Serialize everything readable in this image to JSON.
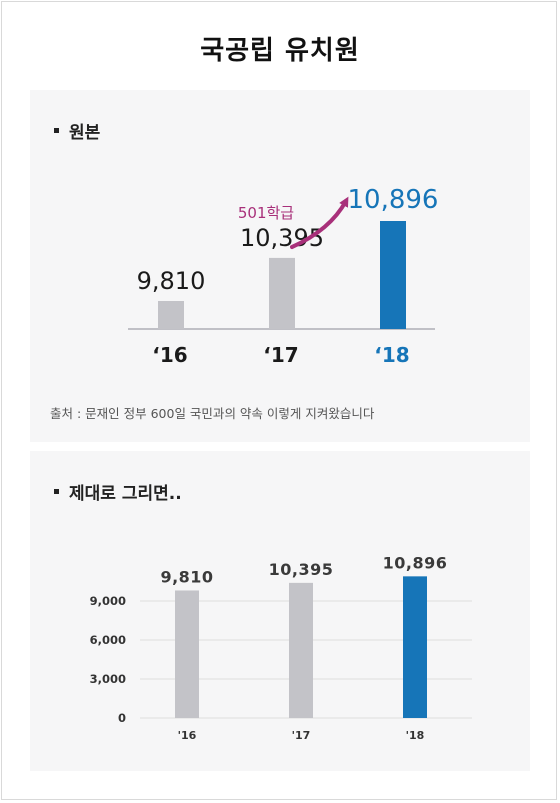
{
  "page": {
    "title": "국공립 유치원"
  },
  "original": {
    "section_title": "원본",
    "source_note": "출처 : 문재인 정부 600일 국민과의 약속 이렇게 지켜왔습니다",
    "annotation": "501학급"
  },
  "redrawn": {
    "section_title": "제대로 그리면.."
  },
  "colors": {
    "gray_bar": "#c3c3c8",
    "accent_blue": "#1675b8",
    "arrow_magenta": "#a8307a",
    "panel_bg": "#f6f6f7"
  },
  "chart_data": [
    {
      "type": "bar",
      "categories": [
        "‘16",
        "‘17",
        "‘18"
      ],
      "values": [
        9810,
        10395,
        10896
      ],
      "value_labels": [
        "9,810",
        "10,395",
        "10,896"
      ],
      "annotation": "501학급",
      "truncated_axis": true,
      "highlight_category": "‘18"
    },
    {
      "type": "bar",
      "categories": [
        "'16",
        "'17",
        "'18"
      ],
      "values": [
        9810,
        10395,
        10896
      ],
      "value_labels": [
        "9,810",
        "10,395",
        "10,896"
      ],
      "ylim": [
        0,
        12000
      ],
      "yticks": [
        0,
        3000,
        6000,
        9000
      ],
      "ytick_labels": [
        "0",
        "3,000",
        "6,000",
        "9,000"
      ],
      "grid": true,
      "highlight_category": "'18"
    }
  ]
}
